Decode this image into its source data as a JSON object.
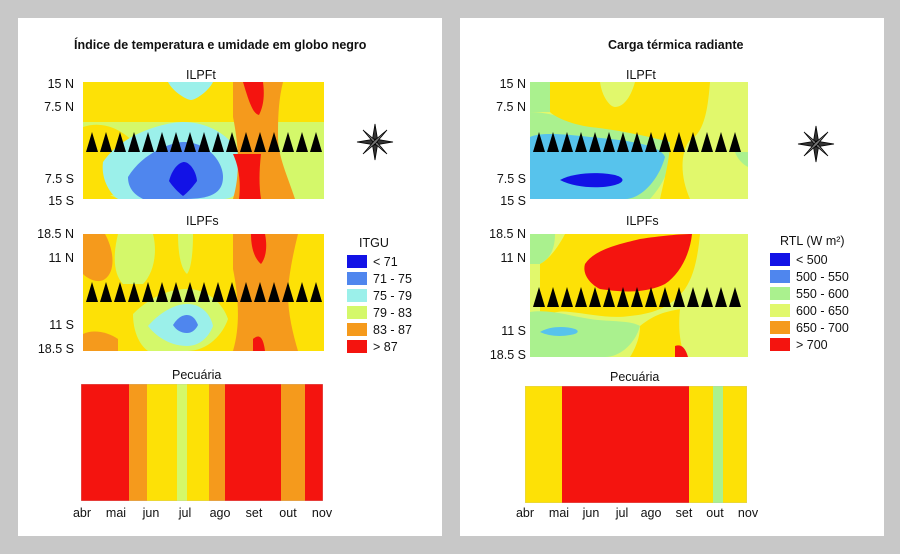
{
  "colors": {
    "blue": "#1212e6",
    "medblue": "#4f86ee",
    "cyan": "#9bf0ea",
    "teal": "#57c3ec",
    "lime": "#d4f86a",
    "yellow": "#fde106",
    "orange": "#f59a1c",
    "red": "#f4140f",
    "lightgreen": "#aaf18e",
    "yellowgreen": "#e1f86c"
  },
  "left": {
    "title": "Índice de temperatura e umidade em globo negro",
    "top_label": "ILPFt",
    "mid_label": "ILPFs",
    "bottom_label": "Pecuária",
    "top_y": [
      "15 N",
      "7.5 N",
      "7.5 S",
      "15 S"
    ],
    "mid_y": [
      "18.5 N",
      "11 N",
      "11 S",
      "18.5 S"
    ],
    "months": [
      "abr",
      "mai",
      "jun",
      "jul",
      "ago",
      "set",
      "out",
      "nov"
    ],
    "legend": {
      "title": "ITGU",
      "items": [
        {
          "label": "< 71",
          "color": "#1212e6"
        },
        {
          "label": "71 - 75",
          "color": "#4f86ee"
        },
        {
          "label": "75 - 79",
          "color": "#9bf0ea"
        },
        {
          "label": "79 - 83",
          "color": "#d4f86a"
        },
        {
          "label": "83 - 87",
          "color": "#f59a1c"
        },
        {
          "label": "> 87",
          "color": "#f4140f"
        }
      ]
    }
  },
  "right": {
    "title": "Carga térmica radiante",
    "top_label": "ILPFt",
    "mid_label": "ILPFs",
    "bottom_label": "Pecuária",
    "top_y": [
      "15 N",
      "7.5 N",
      "7.5 S",
      "15 S"
    ],
    "mid_y": [
      "18.5 N",
      "11 N",
      "11 S",
      "18.5 S"
    ],
    "months": [
      "abr",
      "mai",
      "jun",
      "jul",
      "ago",
      "set",
      "out",
      "nov"
    ],
    "legend": {
      "title": "RTL (W m²)",
      "items": [
        {
          "label": "< 500",
          "color": "#1212e6"
        },
        {
          "label": "500 - 550",
          "color": "#4f86ee"
        },
        {
          "label": "550 - 600",
          "color": "#aaf18e"
        },
        {
          "label": "600 - 650",
          "color": "#e1f86c"
        },
        {
          "label": "650 - 700",
          "color": "#f59a1c"
        },
        {
          "label": "> 700",
          "color": "#f4140f"
        }
      ]
    }
  }
}
